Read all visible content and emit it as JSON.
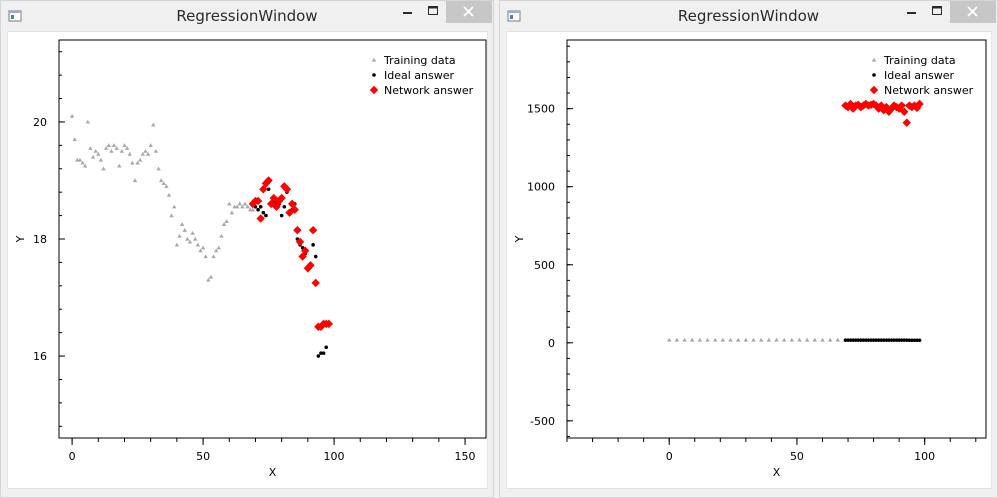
{
  "windows": [
    {
      "title": "RegressionWindow",
      "chart_data": {
        "type": "scatter",
        "xlabel": "X",
        "ylabel": "Y",
        "xlim": [
          -5,
          158
        ],
        "ylim": [
          14.6,
          21.4
        ],
        "xticks": [
          0,
          50,
          100,
          150
        ],
        "yticks": [
          16,
          18,
          20
        ],
        "legend_position": "top-right",
        "series": [
          {
            "name": "Training data",
            "marker": "triangle",
            "color": "#a8a8a8",
            "points": [
              [
                0,
                20.1
              ],
              [
                1,
                19.7
              ],
              [
                2,
                19.35
              ],
              [
                3,
                19.35
              ],
              [
                4,
                19.3
              ],
              [
                5,
                19.25
              ],
              [
                6,
                20.0
              ],
              [
                7,
                19.55
              ],
              [
                8,
                19.4
              ],
              [
                9,
                19.5
              ],
              [
                10,
                19.45
              ],
              [
                11,
                19.35
              ],
              [
                12,
                19.2
              ],
              [
                13,
                19.55
              ],
              [
                14,
                19.6
              ],
              [
                15,
                19.5
              ],
              [
                16,
                19.6
              ],
              [
                17,
                19.55
              ],
              [
                18,
                19.25
              ],
              [
                19,
                19.5
              ],
              [
                20,
                19.6
              ],
              [
                21,
                19.55
              ],
              [
                22,
                19.45
              ],
              [
                23,
                19.3
              ],
              [
                24,
                19.0
              ],
              [
                25,
                19.3
              ],
              [
                26,
                19.35
              ],
              [
                27,
                19.45
              ],
              [
                28,
                19.5
              ],
              [
                29,
                19.45
              ],
              [
                30,
                19.6
              ],
              [
                31,
                19.95
              ],
              [
                32,
                19.5
              ],
              [
                33,
                19.2
              ],
              [
                34,
                19.0
              ],
              [
                35,
                18.95
              ],
              [
                36,
                18.9
              ],
              [
                37,
                18.75
              ],
              [
                38,
                18.4
              ],
              [
                39,
                18.55
              ],
              [
                40,
                17.9
              ],
              [
                41,
                18.05
              ],
              [
                42,
                18.25
              ],
              [
                43,
                18.15
              ],
              [
                44,
                18.0
              ],
              [
                45,
                17.95
              ],
              [
                46,
                18.1
              ],
              [
                47,
                18.0
              ],
              [
                48,
                17.9
              ],
              [
                49,
                17.8
              ],
              [
                50,
                17.85
              ],
              [
                51,
                17.7
              ],
              [
                52,
                17.3
              ],
              [
                53,
                17.35
              ],
              [
                54,
                17.7
              ],
              [
                55,
                17.8
              ],
              [
                56,
                17.85
              ],
              [
                57,
                18.05
              ],
              [
                58,
                18.25
              ],
              [
                59,
                18.3
              ],
              [
                60,
                18.6
              ],
              [
                61,
                18.45
              ],
              [
                62,
                18.55
              ],
              [
                63,
                18.55
              ],
              [
                64,
                18.6
              ],
              [
                65,
                18.55
              ],
              [
                66,
                18.6
              ],
              [
                67,
                18.55
              ],
              [
                68,
                18.5
              ],
              [
                69,
                18.5
              ]
            ]
          },
          {
            "name": "Ideal answer",
            "marker": "dot",
            "color": "#000000",
            "points": [
              [
                70,
                18.55
              ],
              [
                71,
                18.5
              ],
              [
                72,
                18.55
              ],
              [
                73,
                18.45
              ],
              [
                74,
                18.4
              ],
              [
                75,
                18.85
              ],
              [
                76,
                18.6
              ],
              [
                77,
                18.65
              ],
              [
                78,
                18.6
              ],
              [
                79,
                18.6
              ],
              [
                80,
                18.4
              ],
              [
                81,
                18.55
              ],
              [
                82,
                18.8
              ],
              [
                83,
                18.45
              ],
              [
                84,
                18.5
              ],
              [
                85,
                18.6
              ],
              [
                86,
                18.0
              ],
              [
                87,
                17.9
              ],
              [
                88,
                17.85
              ],
              [
                89,
                17.75
              ],
              [
                90,
                17.5
              ],
              [
                91,
                17.55
              ],
              [
                92,
                17.9
              ],
              [
                93,
                17.7
              ],
              [
                94,
                16.0
              ],
              [
                95,
                16.05
              ],
              [
                96,
                16.05
              ],
              [
                97,
                16.15
              ]
            ]
          },
          {
            "name": "Network answer",
            "marker": "diamond",
            "color": "#ff0000",
            "points": [
              [
                69,
                18.6
              ],
              [
                70,
                18.65
              ],
              [
                71,
                18.65
              ],
              [
                72,
                18.35
              ],
              [
                73,
                18.85
              ],
              [
                74,
                18.95
              ],
              [
                75,
                19.0
              ],
              [
                76,
                18.6
              ],
              [
                77,
                18.7
              ],
              [
                78,
                18.55
              ],
              [
                79,
                18.65
              ],
              [
                80,
                18.7
              ],
              [
                81,
                18.9
              ],
              [
                82,
                18.85
              ],
              [
                83,
                18.45
              ],
              [
                84,
                18.6
              ],
              [
                85,
                18.5
              ],
              [
                86,
                18.15
              ],
              [
                87,
                17.95
              ],
              [
                88,
                17.7
              ],
              [
                89,
                17.8
              ],
              [
                90,
                17.5
              ],
              [
                91,
                17.55
              ],
              [
                92,
                18.15
              ],
              [
                93,
                17.25
              ],
              [
                94,
                16.5
              ],
              [
                95,
                16.5
              ],
              [
                96,
                16.55
              ],
              [
                97,
                16.55
              ],
              [
                98,
                16.55
              ]
            ]
          }
        ]
      }
    },
    {
      "title": "RegressionWindow",
      "chart_data": {
        "type": "scatter",
        "xlabel": "X",
        "ylabel": "Y",
        "xlim": [
          -40,
          124
        ],
        "ylim": [
          -610,
          1940
        ],
        "xticks": [
          0,
          50,
          100
        ],
        "yticks": [
          -500,
          0,
          500,
          1000,
          1500
        ],
        "legend_position": "top-right",
        "series": [
          {
            "name": "Training data",
            "marker": "triangle",
            "color": "#a8a8a8",
            "points": [
              [
                0,
                18
              ],
              [
                3,
                18
              ],
              [
                6,
                18
              ],
              [
                9,
                18
              ],
              [
                12,
                18
              ],
              [
                15,
                18
              ],
              [
                18,
                18
              ],
              [
                21,
                18
              ],
              [
                24,
                18
              ],
              [
                27,
                18
              ],
              [
                30,
                18
              ],
              [
                33,
                18
              ],
              [
                36,
                18
              ],
              [
                39,
                18
              ],
              [
                42,
                18
              ],
              [
                45,
                18
              ],
              [
                48,
                18
              ],
              [
                51,
                18
              ],
              [
                54,
                18
              ],
              [
                57,
                18
              ],
              [
                60,
                18
              ],
              [
                63,
                18
              ],
              [
                66,
                18
              ],
              [
                69,
                18
              ]
            ]
          },
          {
            "name": "Ideal answer",
            "marker": "dot",
            "color": "#000000",
            "points": [
              [
                69,
                17
              ],
              [
                70,
                17
              ],
              [
                71,
                17
              ],
              [
                72,
                17
              ],
              [
                73,
                17
              ],
              [
                74,
                17
              ],
              [
                75,
                17
              ],
              [
                76,
                17
              ],
              [
                77,
                17
              ],
              [
                78,
                17
              ],
              [
                79,
                17
              ],
              [
                80,
                17
              ],
              [
                81,
                17
              ],
              [
                82,
                17
              ],
              [
                83,
                17
              ],
              [
                84,
                17
              ],
              [
                85,
                17
              ],
              [
                86,
                17
              ],
              [
                87,
                17
              ],
              [
                88,
                17
              ],
              [
                89,
                17
              ],
              [
                90,
                17
              ],
              [
                91,
                17
              ],
              [
                92,
                17
              ],
              [
                93,
                17
              ],
              [
                94,
                16
              ],
              [
                95,
                16
              ],
              [
                96,
                16
              ],
              [
                97,
                16
              ],
              [
                98,
                16
              ]
            ]
          },
          {
            "name": "Network answer",
            "marker": "diamond",
            "color": "#ff0000",
            "points": [
              [
                69,
                1520
              ],
              [
                70,
                1510
              ],
              [
                71,
                1530
              ],
              [
                72,
                1500
              ],
              [
                73,
                1520
              ],
              [
                74,
                1525
              ],
              [
                75,
                1510
              ],
              [
                76,
                1520
              ],
              [
                77,
                1530
              ],
              [
                78,
                1520
              ],
              [
                79,
                1525
              ],
              [
                80,
                1530
              ],
              [
                81,
                1520
              ],
              [
                82,
                1500
              ],
              [
                83,
                1520
              ],
              [
                84,
                1490
              ],
              [
                85,
                1510
              ],
              [
                86,
                1480
              ],
              [
                87,
                1500
              ],
              [
                88,
                1520
              ],
              [
                89,
                1510
              ],
              [
                90,
                1500
              ],
              [
                91,
                1520
              ],
              [
                92,
                1480
              ],
              [
                93,
                1410
              ],
              [
                94,
                1520
              ],
              [
                95,
                1510
              ],
              [
                96,
                1520
              ],
              [
                97,
                1505
              ],
              [
                98,
                1530
              ]
            ]
          }
        ]
      }
    }
  ]
}
